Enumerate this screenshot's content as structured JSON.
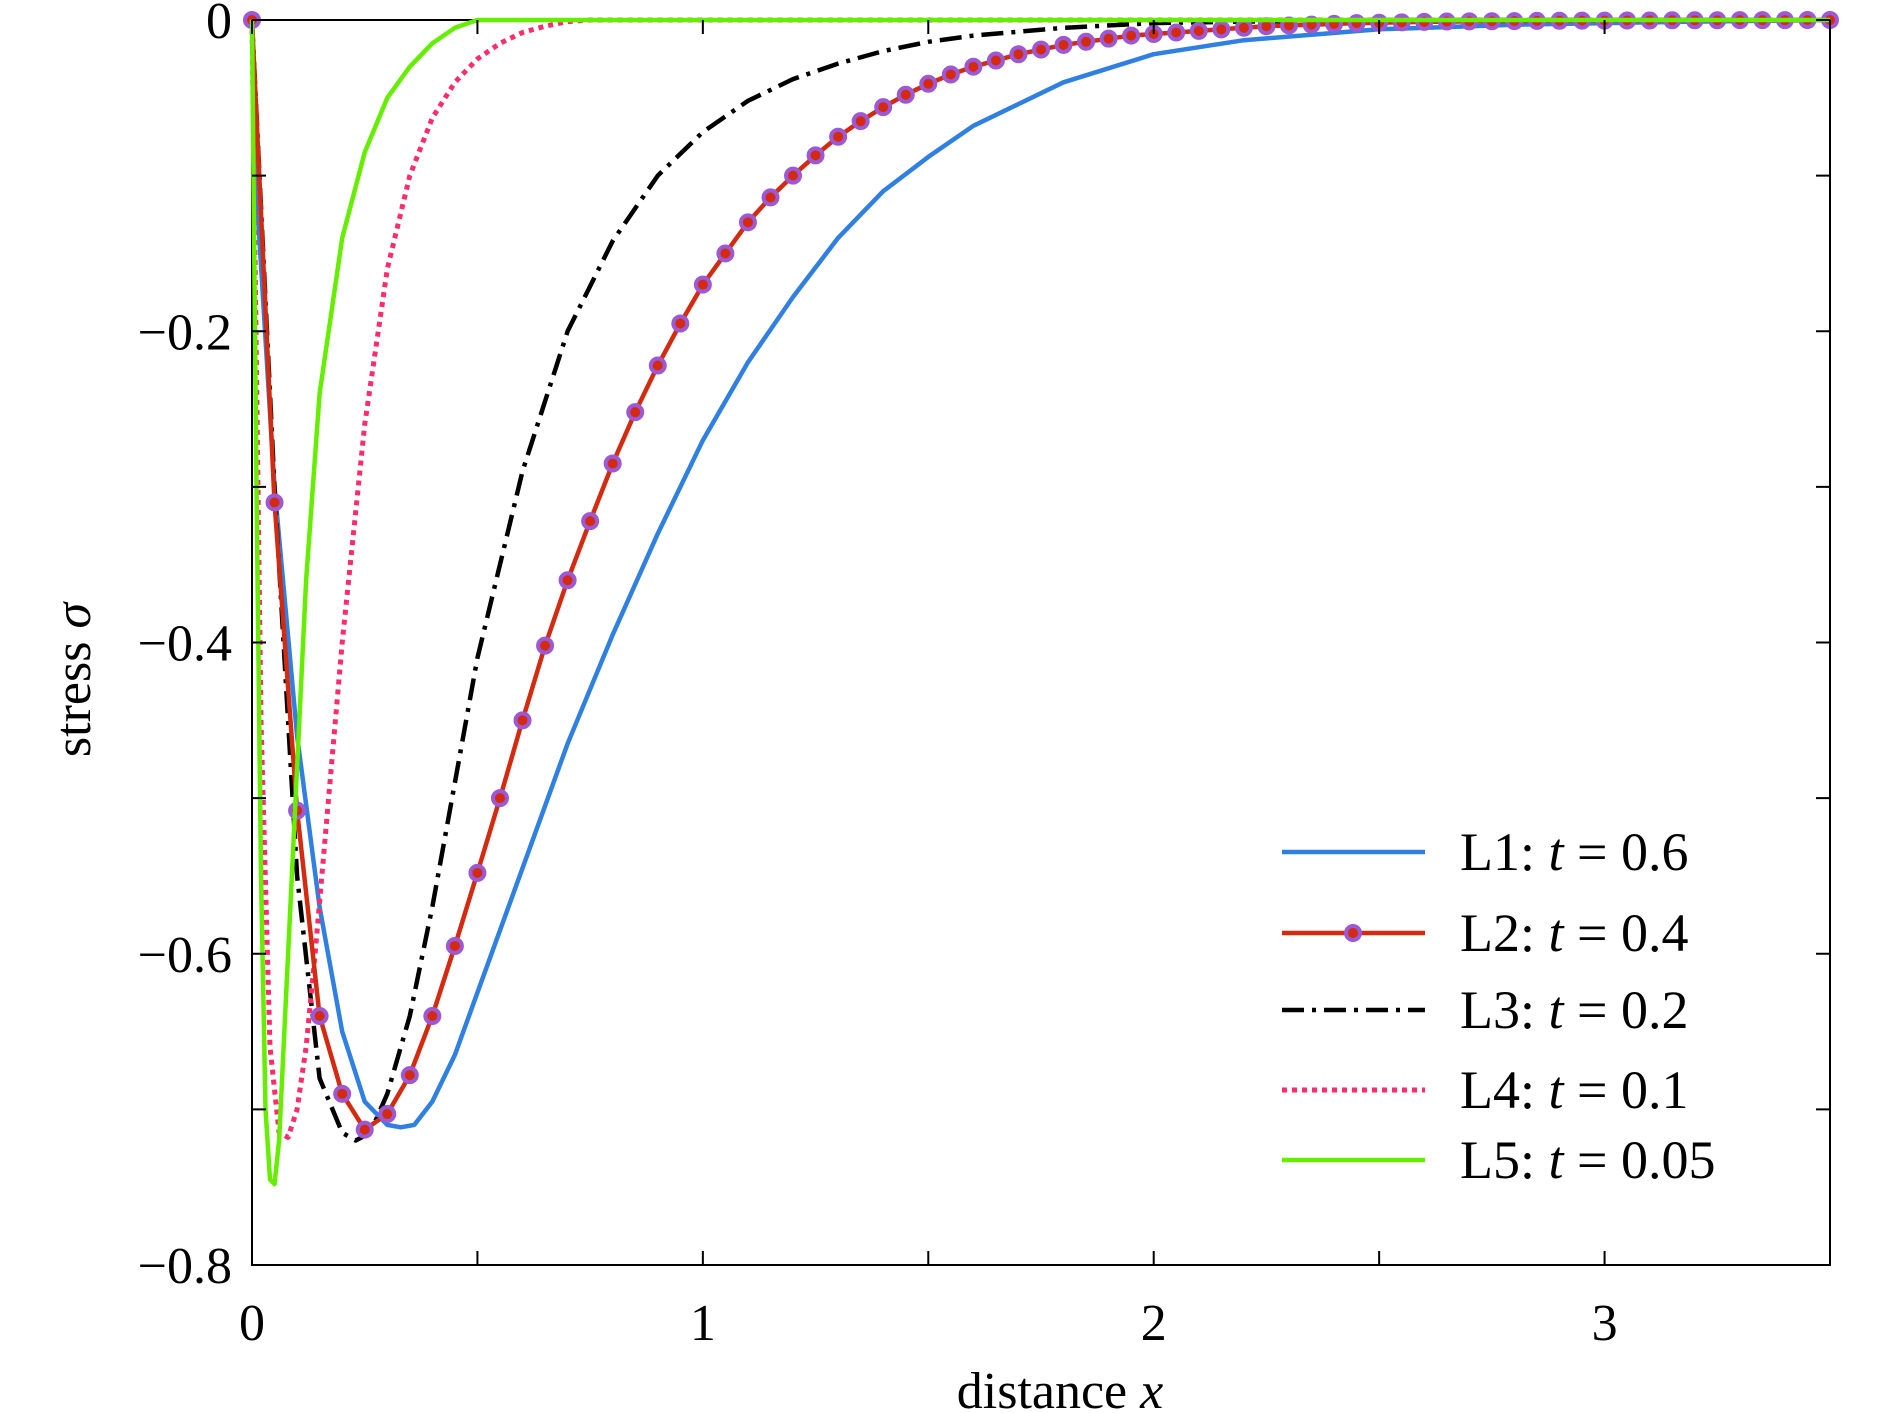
{
  "chart_data": {
    "type": "line",
    "title": "",
    "xlabel": "distance x",
    "xlabel_parts": {
      "text": "distance ",
      "var": "x"
    },
    "ylabel": "stress σ",
    "ylabel_parts": {
      "text": "stress ",
      "var": "σ"
    },
    "xlim": [
      0,
      3.5
    ],
    "ylim": [
      -0.8,
      0
    ],
    "xticks": [
      0,
      1,
      2,
      3
    ],
    "xtick_labels": [
      "0",
      "1",
      "2",
      "3"
    ],
    "yticks": [
      0,
      -0.2,
      -0.4,
      -0.6,
      -0.8
    ],
    "ytick_labels": [
      "0",
      "−0.2",
      "−0.4",
      "−0.6",
      "−0.8"
    ],
    "grid": false,
    "legend_position": "lower-right",
    "series": [
      {
        "name": "L1: t = 0.6",
        "legend_prefix": "L1: ",
        "legend_var": "t",
        "legend_suffix": " = 0.6",
        "color": "#2f80e0",
        "style": "solid",
        "marker": "none",
        "x": [
          0,
          0.01,
          0.05,
          0.1,
          0.15,
          0.2,
          0.25,
          0.3,
          0.33,
          0.36,
          0.4,
          0.45,
          0.5,
          0.6,
          0.7,
          0.8,
          0.9,
          1.0,
          1.1,
          1.2,
          1.3,
          1.4,
          1.5,
          1.6,
          1.8,
          2.0,
          2.2,
          2.5,
          2.8,
          3.0,
          3.2,
          3.5
        ],
        "y": [
          0,
          -0.11,
          -0.3,
          -0.46,
          -0.57,
          -0.65,
          -0.695,
          -0.71,
          -0.7115,
          -0.71,
          -0.695,
          -0.665,
          -0.625,
          -0.545,
          -0.465,
          -0.395,
          -0.33,
          -0.27,
          -0.22,
          -0.178,
          -0.14,
          -0.11,
          -0.088,
          -0.068,
          -0.04,
          -0.022,
          -0.013,
          -0.006,
          -0.003,
          -0.002,
          -0.001,
          0
        ]
      },
      {
        "name": "L2: t = 0.4",
        "legend_prefix": "L2: ",
        "legend_var": "t",
        "legend_suffix": " = 0.4",
        "color": "#d42a10",
        "marker_color": "#9b59d6",
        "style": "solid",
        "marker": "circle",
        "x": [
          0,
          0.05,
          0.1,
          0.15,
          0.2,
          0.25,
          0.3,
          0.35,
          0.4,
          0.45,
          0.5,
          0.55,
          0.6,
          0.65,
          0.7,
          0.75,
          0.8,
          0.85,
          0.9,
          0.95,
          1.0,
          1.05,
          1.1,
          1.15,
          1.2,
          1.25,
          1.3,
          1.35,
          1.4,
          1.45,
          1.5,
          1.55,
          1.6,
          1.65,
          1.7,
          1.75,
          1.8,
          1.85,
          1.9,
          1.95,
          2.0,
          2.05,
          2.1,
          2.15,
          2.2,
          2.25,
          2.3,
          2.35,
          2.4,
          2.45,
          2.5,
          2.55,
          2.6,
          2.65,
          2.7,
          2.75,
          2.8,
          2.85,
          2.9,
          2.95,
          3.0,
          3.05,
          3.1,
          3.15,
          3.2,
          3.25,
          3.3,
          3.35,
          3.4,
          3.45,
          3.5
        ],
        "y": [
          0,
          -0.31,
          -0.508,
          -0.64,
          -0.69,
          -0.713,
          -0.703,
          -0.678,
          -0.64,
          -0.595,
          -0.548,
          -0.5,
          -0.45,
          -0.402,
          -0.36,
          -0.322,
          -0.285,
          -0.252,
          -0.222,
          -0.195,
          -0.17,
          -0.15,
          -0.13,
          -0.114,
          -0.1,
          -0.087,
          -0.075,
          -0.065,
          -0.056,
          -0.048,
          -0.041,
          -0.035,
          -0.03,
          -0.026,
          -0.022,
          -0.019,
          -0.016,
          -0.014,
          -0.012,
          -0.01,
          -0.009,
          -0.008,
          -0.007,
          -0.006,
          -0.005,
          -0.004,
          -0.0035,
          -0.003,
          -0.0025,
          -0.002,
          -0.0018,
          -0.0015,
          -0.0012,
          -0.001,
          -0.0009,
          -0.0008,
          -0.0007,
          -0.0006,
          -0.0005,
          -0.0004,
          -0.0004,
          -0.0003,
          -0.0003,
          -0.0002,
          -0.0002,
          -0.0002,
          -0.0001,
          -0.0001,
          -0.0001,
          0,
          0
        ]
      },
      {
        "name": "L3: t = 0.2",
        "legend_prefix": "L3: ",
        "legend_var": "t",
        "legend_suffix": " = 0.2",
        "color": "#000000",
        "style": "dashdot",
        "marker": "none",
        "x": [
          0,
          0.05,
          0.1,
          0.15,
          0.2,
          0.23,
          0.25,
          0.27,
          0.3,
          0.35,
          0.4,
          0.45,
          0.5,
          0.6,
          0.7,
          0.8,
          0.9,
          1.0,
          1.1,
          1.2,
          1.3,
          1.4,
          1.5,
          1.6,
          1.8,
          2.0,
          2.2,
          2.5,
          3.0,
          3.5
        ],
        "y": [
          0,
          -0.3,
          -0.55,
          -0.68,
          -0.715,
          -0.72,
          -0.717,
          -0.71,
          -0.69,
          -0.64,
          -0.57,
          -0.49,
          -0.41,
          -0.29,
          -0.2,
          -0.142,
          -0.1,
          -0.072,
          -0.052,
          -0.038,
          -0.028,
          -0.02,
          -0.014,
          -0.01,
          -0.005,
          -0.002,
          -0.001,
          0,
          0,
          0
        ]
      },
      {
        "name": "L4: t = 0.1",
        "legend_prefix": "L4: ",
        "legend_var": "t",
        "legend_suffix": " = 0.1",
        "color": "#ff2b6a",
        "style": "dotted",
        "marker": "none",
        "x": [
          0,
          0.02,
          0.04,
          0.06,
          0.08,
          0.1,
          0.12,
          0.14,
          0.17,
          0.2,
          0.25,
          0.3,
          0.35,
          0.4,
          0.45,
          0.5,
          0.55,
          0.6,
          0.65,
          0.7,
          0.75,
          1.0,
          2.0,
          3.5
        ],
        "y": [
          0,
          -0.45,
          -0.66,
          -0.715,
          -0.718,
          -0.7,
          -0.66,
          -0.6,
          -0.5,
          -0.4,
          -0.26,
          -0.16,
          -0.1,
          -0.063,
          -0.04,
          -0.025,
          -0.015,
          -0.008,
          -0.004,
          -0.001,
          0,
          0,
          0,
          0
        ]
      },
      {
        "name": "L5: t = 0.05",
        "legend_prefix": "L5: ",
        "legend_var": "t",
        "legend_suffix": " = 0.05",
        "color": "#66ee00",
        "style": "solid",
        "marker": "none",
        "x": [
          0,
          0.01,
          0.02,
          0.03,
          0.04,
          0.05,
          0.06,
          0.07,
          0.08,
          0.1,
          0.12,
          0.15,
          0.2,
          0.25,
          0.3,
          0.35,
          0.4,
          0.45,
          0.5,
          1.0,
          2.0,
          3.5
        ],
        "y": [
          0,
          -0.3,
          -0.55,
          -0.7,
          -0.745,
          -0.748,
          -0.72,
          -0.66,
          -0.6,
          -0.48,
          -0.36,
          -0.24,
          -0.14,
          -0.085,
          -0.05,
          -0.03,
          -0.015,
          -0.005,
          0,
          0,
          0,
          0
        ]
      }
    ]
  }
}
